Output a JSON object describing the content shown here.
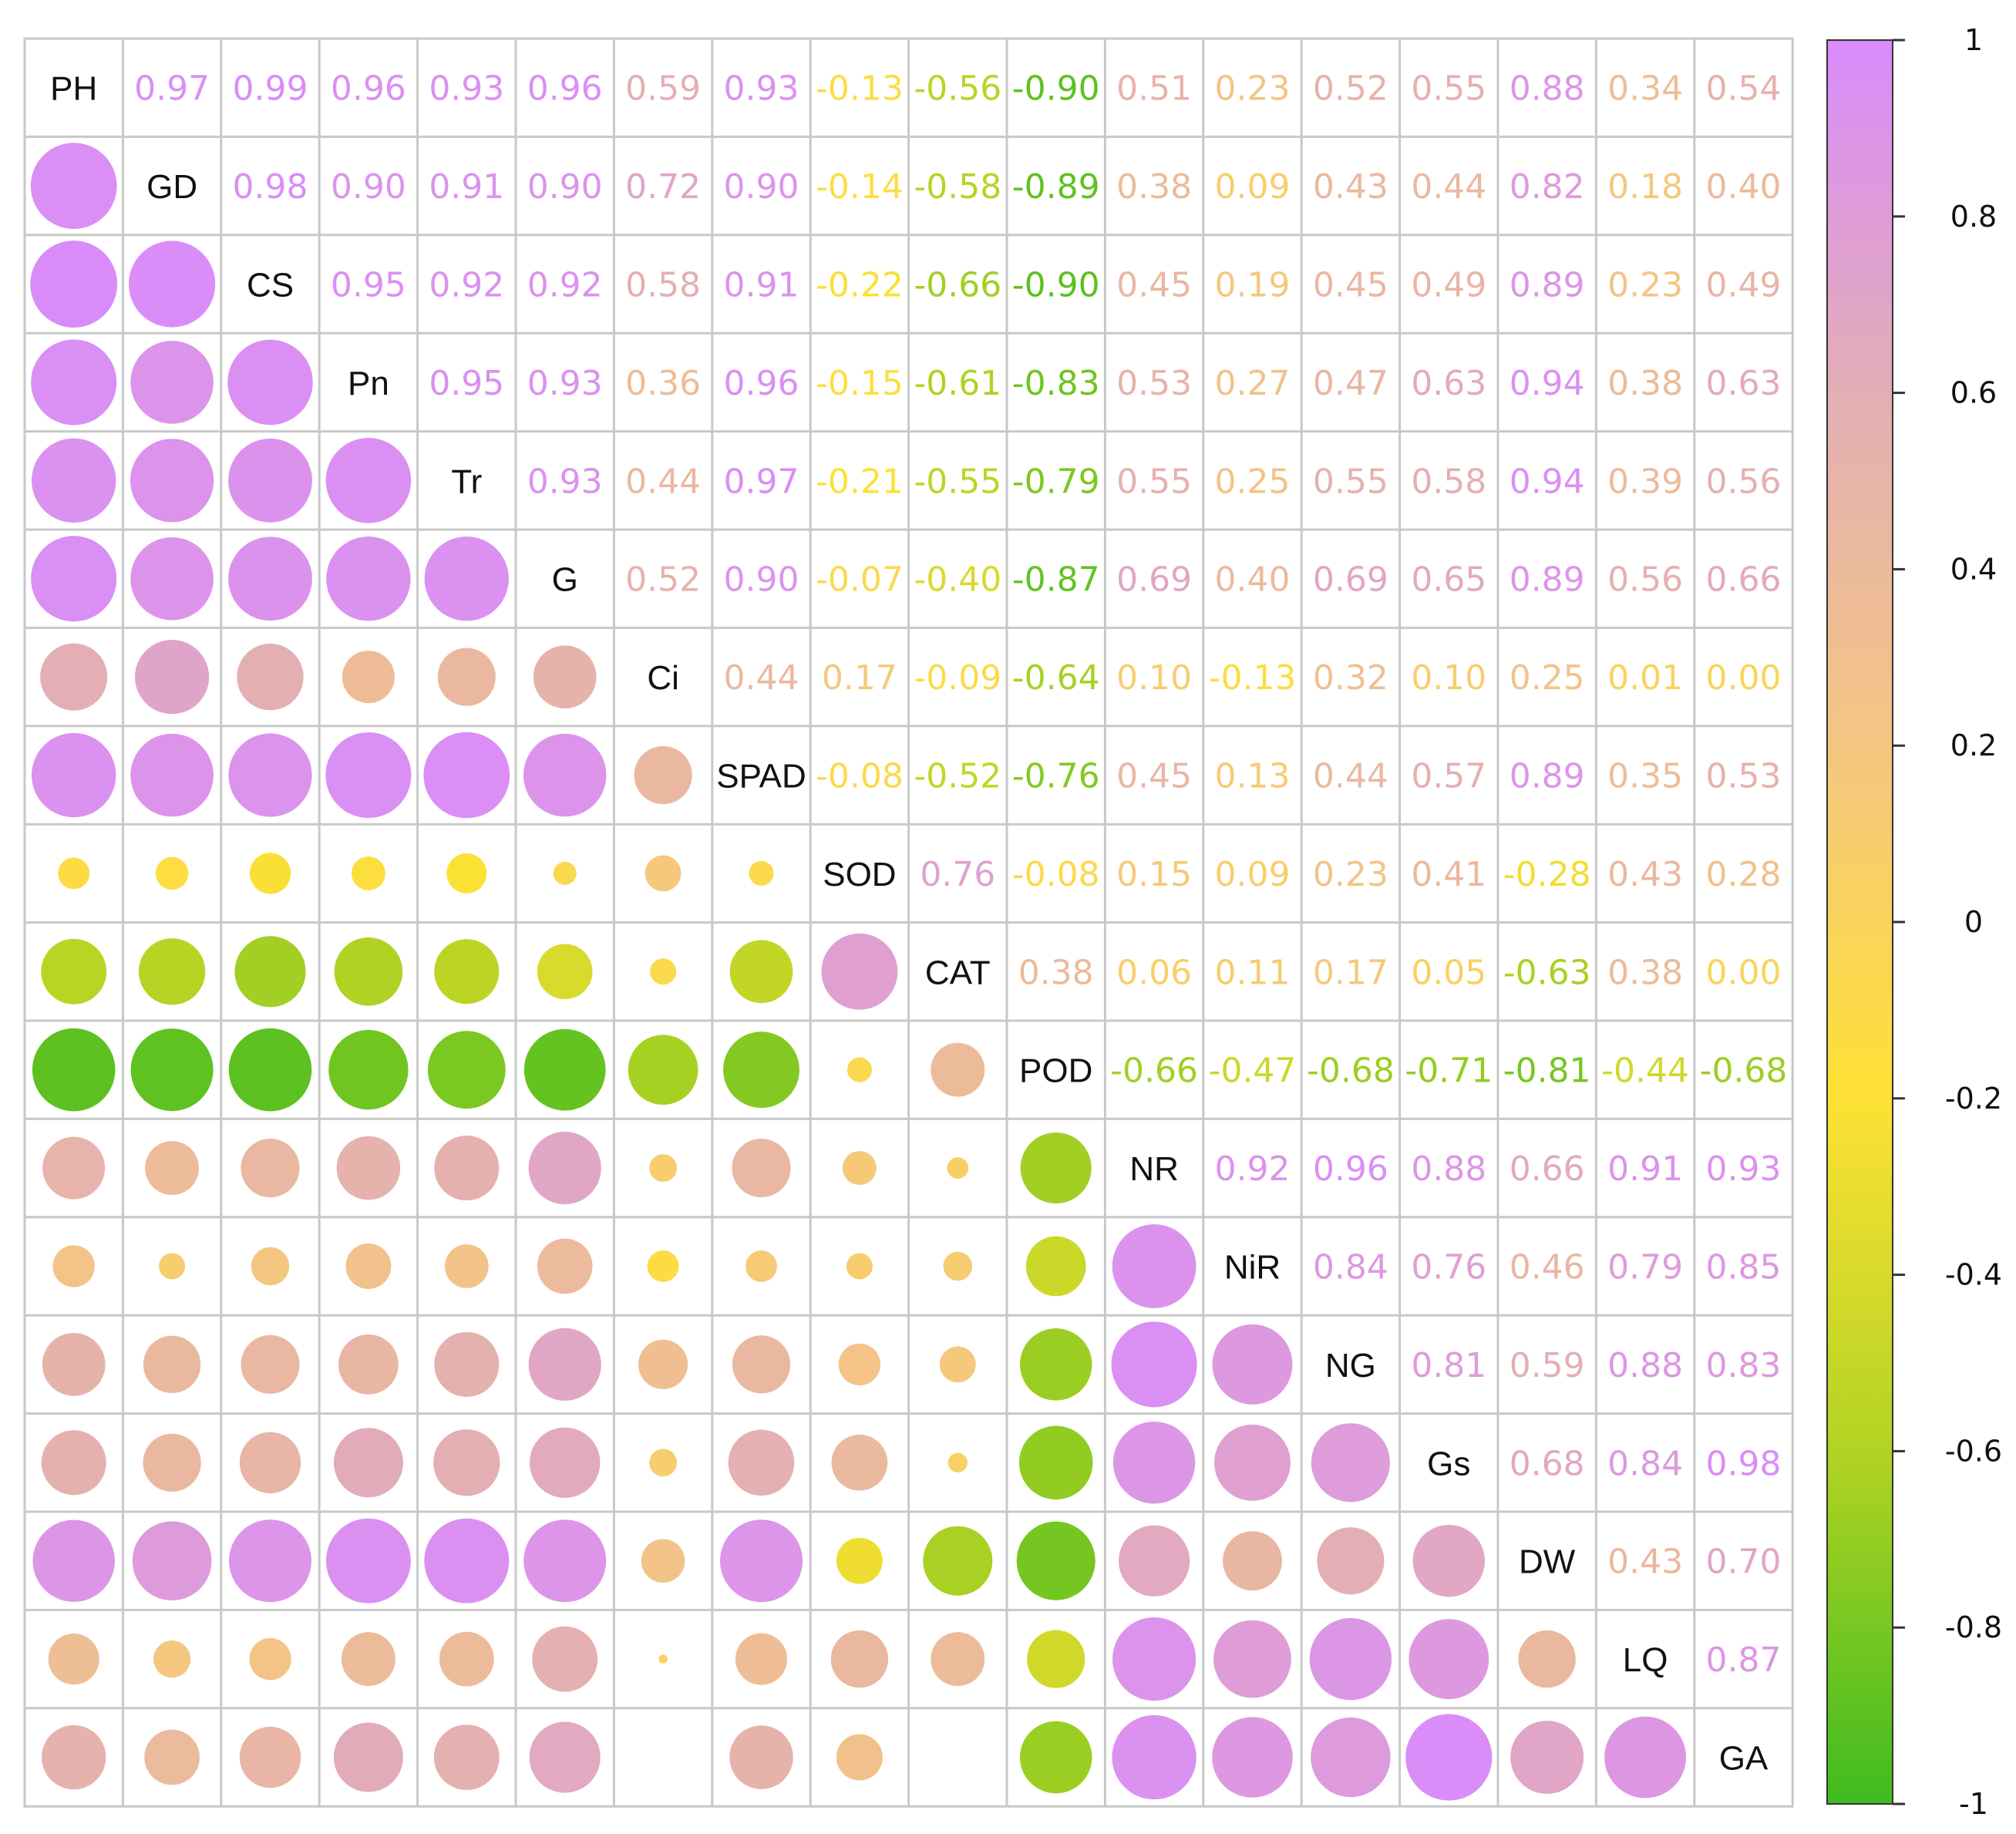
{
  "chart_data": {
    "type": "heatmap",
    "variables": [
      "PH",
      "GD",
      "CS",
      "Pn",
      "Tr",
      "G",
      "Ci",
      "SPAD",
      "SOD",
      "CAT",
      "POD",
      "NR",
      "NiR",
      "NG",
      "Gs",
      "DW",
      "LQ",
      "GA"
    ],
    "upper_labels": [
      [
        "",
        "0.97",
        "0.99",
        "0.96",
        "0.93",
        "0.96",
        "0.59",
        "0.93",
        "-0.13",
        "-0.56",
        "-0.90",
        "0.51",
        "0.23",
        "0.52",
        "0.55",
        "0.88",
        "0.34",
        "0.54"
      ],
      [
        "",
        "",
        "0.98",
        "0.90",
        "0.91",
        "0.90",
        "0.72",
        "0.90",
        "-0.14",
        "-0.58",
        "-0.89",
        "0.38",
        "0.09",
        "0.43",
        "0.44",
        "0.82",
        "0.18",
        "0.40"
      ],
      [
        "",
        "",
        "",
        "0.95",
        "0.92",
        "0.92",
        "0.58",
        "0.91",
        "-0.22",
        "-0.66",
        "-0.90",
        "0.45",
        "0.19",
        "0.45",
        "0.49",
        "0.89",
        "0.23",
        "0.49"
      ],
      [
        "",
        "",
        "",
        "",
        "0.95",
        "0.93",
        "0.36",
        "0.96",
        "-0.15",
        "-0.61",
        "-0.83",
        "0.53",
        "0.27",
        "0.47",
        "0.63",
        "0.94",
        "0.38",
        "0.63"
      ],
      [
        "",
        "",
        "",
        "",
        "",
        "0.93",
        "0.44",
        "0.97",
        "-0.21",
        "-0.55",
        "-0.79",
        "0.55",
        "0.25",
        "0.55",
        "0.58",
        "0.94",
        "0.39",
        "0.56"
      ],
      [
        "",
        "",
        "",
        "",
        "",
        "",
        "0.52",
        "0.90",
        "-0.07",
        "-0.40",
        "-0.87",
        "0.69",
        "0.40",
        "0.69",
        "0.65",
        "0.89",
        "0.56",
        "0.66"
      ],
      [
        "",
        "",
        "",
        "",
        "",
        "",
        "",
        "0.44",
        "0.17",
        "-0.09",
        "-0.64",
        "0.10",
        "-0.13",
        "0.32",
        "0.10",
        "0.25",
        "0.01",
        "0.00"
      ],
      [
        "",
        "",
        "",
        "",
        "",
        "",
        "",
        "",
        "-0.08",
        "-0.52",
        "-0.76",
        "0.45",
        "0.13",
        "0.44",
        "0.57",
        "0.89",
        "0.35",
        "0.53"
      ],
      [
        "",
        "",
        "",
        "",
        "",
        "",
        "",
        "",
        "",
        "0.76",
        "-0.08",
        "0.15",
        "0.09",
        "0.23",
        "0.41",
        "-0.28",
        "0.43",
        "0.28"
      ],
      [
        "",
        "",
        "",
        "",
        "",
        "",
        "",
        "",
        "",
        "",
        "0.38",
        "0.06",
        "0.11",
        "0.17",
        "0.05",
        "-0.63",
        "0.38",
        "0.00"
      ],
      [
        "",
        "",
        "",
        "",
        "",
        "",
        "",
        "",
        "",
        "",
        "",
        "-0.66",
        "-0.47",
        "-0.68",
        "-0.71",
        "-0.81",
        "-0.44",
        "-0.68"
      ],
      [
        "",
        "",
        "",
        "",
        "",
        "",
        "",
        "",
        "",
        "",
        "",
        "",
        "0.92",
        "0.96",
        "0.88",
        "0.66",
        "0.91",
        "0.93"
      ],
      [
        "",
        "",
        "",
        "",
        "",
        "",
        "",
        "",
        "",
        "",
        "",
        "",
        "",
        "0.84",
        "0.76",
        "0.46",
        "0.79",
        "0.85"
      ],
      [
        "",
        "",
        "",
        "",
        "",
        "",
        "",
        "",
        "",
        "",
        "",
        "",
        "",
        "",
        "0.81",
        "0.59",
        "0.88",
        "0.83"
      ],
      [
        "",
        "",
        "",
        "",
        "",
        "",
        "",
        "",
        "",
        "",
        "",
        "",
        "",
        "",
        "",
        "0.68",
        "0.84",
        "0.98"
      ],
      [
        "",
        "",
        "",
        "",
        "",
        "",
        "",
        "",
        "",
        "",
        "",
        "",
        "",
        "",
        "",
        "",
        "0.43",
        "0.70"
      ],
      [
        "",
        "",
        "",
        "",
        "",
        "",
        "",
        "",
        "",
        "",
        "",
        "",
        "",
        "",
        "",
        "",
        "",
        "0.87"
      ],
      [
        "",
        "",
        "",
        "",
        "",
        "",
        "",
        "",
        "",
        "",
        "",
        "",
        "",
        "",
        "",
        "",
        "",
        ""
      ]
    ],
    "colorbar": {
      "range": [
        -1,
        1
      ],
      "tick_labels": [
        "1",
        "0.8",
        "0.6",
        "0.4",
        "0.2",
        "0",
        "-0.2",
        "-0.4",
        "-0.6",
        "-0.8",
        "-1"
      ],
      "gradient_colors": [
        "#d98bfb",
        "#e3aeb5",
        "#f4c682",
        "#fee135",
        "#b2d323",
        "#3fbb20"
      ]
    },
    "lower_triangle": "circles",
    "upper_triangle": "numbers",
    "diagonal": "variable names",
    "grid": true
  }
}
